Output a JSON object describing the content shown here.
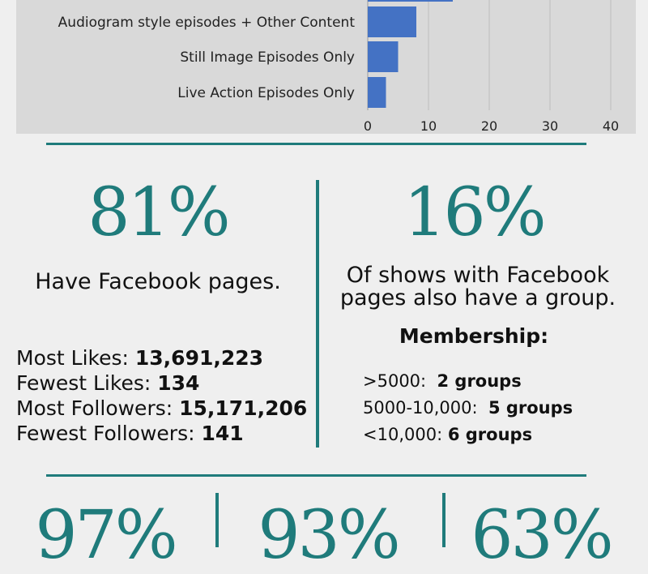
{
  "chart_data": {
    "type": "bar",
    "orientation": "horizontal",
    "categories": [
      "Audiogram style episodes + Other Content",
      "Still Image Episodes Only",
      "Live Action Episodes Only"
    ],
    "values": [
      8,
      5,
      3
    ],
    "partial_bar_top_value": 14,
    "xticks": [
      "0",
      "10",
      "20",
      "30",
      "40"
    ],
    "xlim": [
      0,
      40
    ],
    "grid": true,
    "bar_color": "#4472c4"
  },
  "facebook": {
    "percent": "81%",
    "caption": "Have Facebook pages.",
    "stats": [
      {
        "label": "Most Likes:",
        "value": "13,691,223"
      },
      {
        "label": "Fewest Likes: ",
        "value": "134"
      },
      {
        "label": "Most Followers:",
        "value": "15,171,206"
      },
      {
        "label": "Fewest Followers:",
        "value": "141"
      }
    ]
  },
  "groups": {
    "percent": "16%",
    "caption": "Of shows with Facebook pages also have a group.",
    "membership_title": "Membership:",
    "membership": [
      {
        "label": ">5000:",
        "value": "2 groups"
      },
      {
        "label": "5000-10,000:",
        "value": "5 groups"
      },
      {
        "label": "<10,000:",
        "value": "6 groups"
      }
    ]
  },
  "bottom_percents": [
    "97%",
    "93%",
    "63%"
  ],
  "colors": {
    "accent": "#1f7b7b",
    "bar": "#4472c4",
    "panel": "#d9d9d9",
    "background": "#efefef"
  }
}
